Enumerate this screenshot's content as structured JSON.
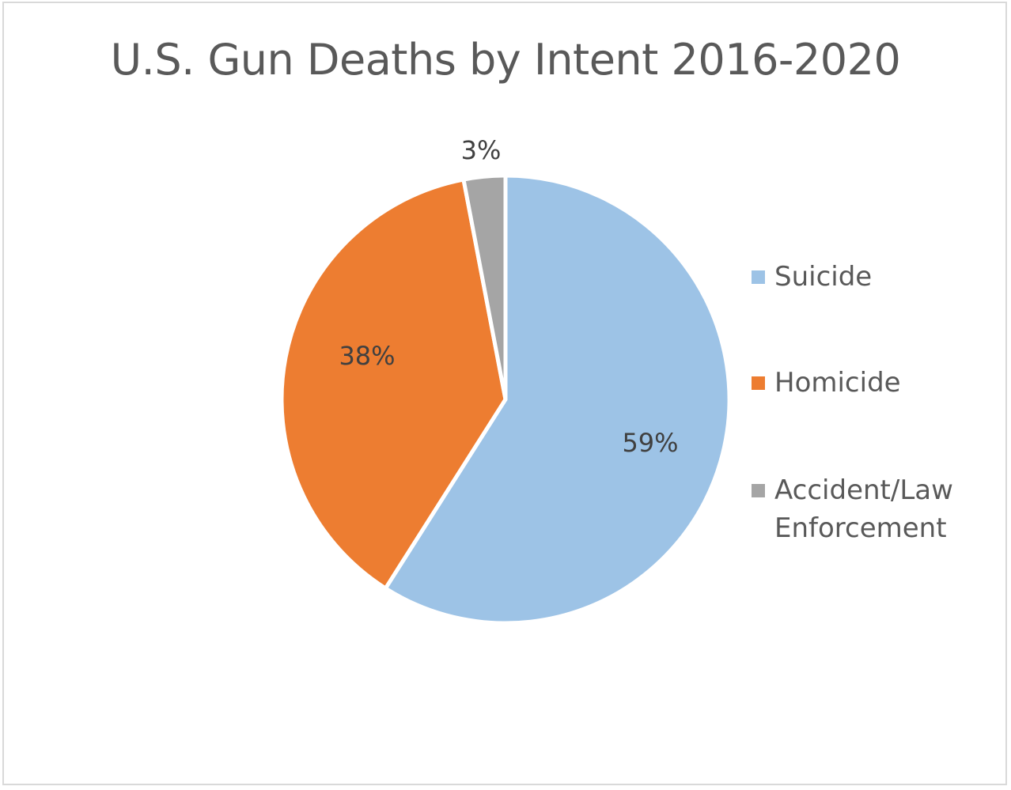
{
  "chart_data": {
    "type": "pie",
    "title": "U.S. Gun Deaths by Intent 2016-2020",
    "slices": [
      {
        "name": "Suicide",
        "value": 59,
        "label": "59%",
        "color": "#9dc3e6"
      },
      {
        "name": "Homicide",
        "value": 38,
        "label": "38%",
        "color": "#ed7d31"
      },
      {
        "name": "Accident/Law\nEnforcement",
        "value": 3,
        "label": "3%",
        "color": "#a5a5a5"
      }
    ],
    "start": "12 o'clock",
    "direction": "clockwise",
    "legend_position": "right"
  }
}
